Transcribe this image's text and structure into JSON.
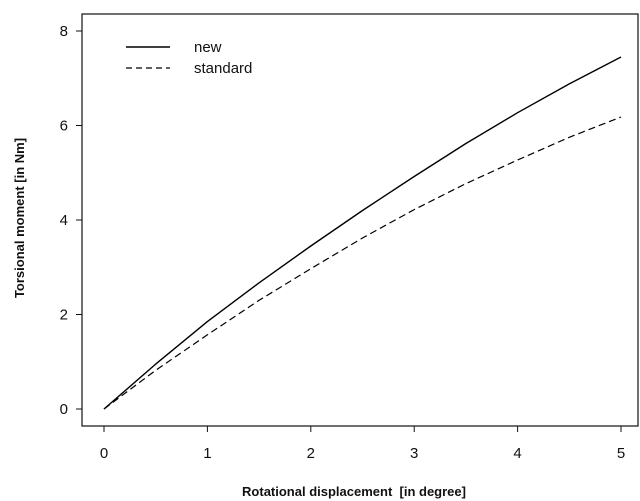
{
  "chart_data": {
    "type": "line",
    "title": "",
    "xlabel": "Rotational displacement  [in degree]",
    "ylabel": "Torsional moment [in Nm]",
    "xlim": [
      0,
      5
    ],
    "ylim": [
      0,
      8
    ],
    "x_ticks": [
      "0",
      "1",
      "2",
      "3",
      "4",
      "5"
    ],
    "y_ticks": [
      "0",
      "2",
      "4",
      "6",
      "8"
    ],
    "grid": false,
    "legend_position": "top-left",
    "series": [
      {
        "name": "new",
        "style": "solid",
        "color": "#000000",
        "x": [
          0,
          0.5,
          1,
          1.5,
          2,
          2.5,
          3,
          3.5,
          4,
          4.5,
          5
        ],
        "y": [
          0,
          0.95,
          1.85,
          2.67,
          3.45,
          4.2,
          4.92,
          5.62,
          6.27,
          6.88,
          7.45
        ]
      },
      {
        "name": "standard",
        "style": "dashed",
        "color": "#000000",
        "x": [
          0,
          0.5,
          1,
          1.5,
          2,
          2.5,
          3,
          3.5,
          4,
          4.5,
          5
        ],
        "y": [
          0,
          0.82,
          1.57,
          2.3,
          2.97,
          3.62,
          4.22,
          4.77,
          5.27,
          5.75,
          6.18
        ]
      }
    ]
  }
}
